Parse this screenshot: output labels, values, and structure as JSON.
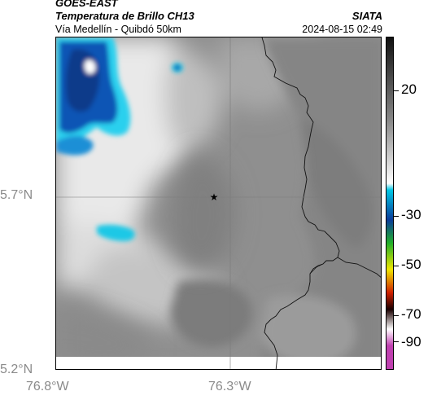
{
  "header": {
    "satellite": "GOES-EAST",
    "product": "Temperatura de Brillo CH13",
    "organization": "SIATA",
    "route": "Vía Medellín - Quibdó 50km",
    "timestamp": "2024-08-15 02:49"
  },
  "map": {
    "lat_labels": [
      "5.7°N",
      "5.2°N"
    ],
    "lon_labels": [
      "76.8°W",
      "76.3°W"
    ],
    "marker_icon": "star-icon",
    "marker_glyph": "★",
    "gridlines": "on"
  },
  "colorbar": {
    "labels": [
      "20",
      "-30",
      "-50",
      "-70",
      "-90"
    ],
    "colors": {
      "warm": "#111111",
      "mid_gray": "#888888",
      "light": "#ffffff",
      "cyan": "#00c8e6",
      "blue": "#0a3c9a",
      "green": "#22b02a",
      "yellow": "#f0e600",
      "red": "#d02000",
      "dark": "#1a0000",
      "magenta": "#c040b0"
    }
  },
  "colors": {
    "cloud_light": "#ededed",
    "clear_gray": "#8e8e8e",
    "cold_cyan": "#2ad0ee",
    "cold_blue": "#0f55b5"
  }
}
